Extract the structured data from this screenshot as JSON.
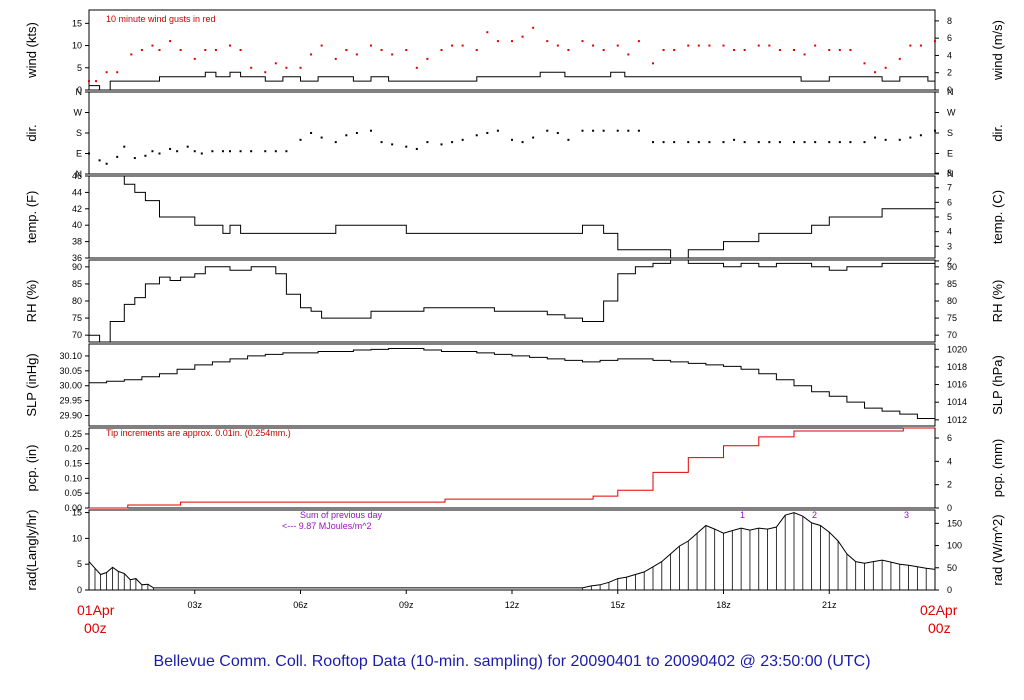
{
  "title": "Bellevue Comm. Coll. Rooftop Data (10-min. sampling) for 20090401  to  20090402 @ 23:50:00  (UTC)",
  "colors": {
    "text_blue": "#1b1bb0",
    "date_red": "#e00000",
    "note_red": "#cc0000",
    "note_purple": "#9a10c0",
    "series_black": "#000000",
    "series_red": "#e00000"
  },
  "xaxis": {
    "ticks": [
      "03z",
      "06z",
      "09z",
      "12z",
      "15z",
      "18z",
      "21z"
    ],
    "start_day": "01Apr",
    "start_hour": "00z",
    "end_day": "02Apr",
    "end_hour": "00z"
  },
  "notes": {
    "gust": "10  minute wind gusts in red",
    "tip": "Tip increments are approx. 0.01in. (0.254mm.)",
    "sum_line1": "Sum of previous day",
    "sum_line2": "<--- 9.87  MJoules/m^2",
    "markers": [
      "1",
      "2",
      "3"
    ]
  },
  "chart_data": [
    {
      "type": "line",
      "ylabel_left": "wind (kts)",
      "ylabel_right": "wind (m/s)",
      "ylim": [
        0,
        18
      ],
      "yticks_left": [
        "0",
        "5",
        "10",
        "15"
      ],
      "ylim_right": [
        0,
        9.26
      ],
      "yticks_right": [
        "0",
        "2",
        "4",
        "6",
        "8"
      ],
      "series": [
        {
          "name": "wind speed",
          "color": "#000000",
          "x": [
            0,
            0.3,
            0.6,
            1.0,
            2.0,
            3.0,
            3.3,
            3.6,
            4.0,
            4.3,
            4.6,
            5.0,
            5.5,
            6.0,
            6.5,
            7.0,
            7.5,
            8.0,
            8.5,
            9.0,
            9.5,
            10.0,
            10.5,
            11.0,
            12.0,
            12.8,
            13.5,
            14.0,
            14.4,
            14.8,
            15.2,
            16.0,
            17.0,
            18.0,
            19.0,
            20.0,
            20.2,
            21.0,
            22.0,
            22.5,
            23.0,
            23.5,
            23.8,
            24.0
          ],
          "y": [
            1,
            0,
            2,
            2,
            3,
            3,
            4,
            3,
            4,
            3,
            3,
            2,
            3,
            2,
            3,
            3,
            2,
            3,
            2,
            2,
            2,
            2,
            2,
            3,
            3,
            4,
            3,
            3,
            3,
            4,
            3,
            3,
            3,
            3,
            3,
            3,
            2,
            3,
            3,
            2,
            3,
            3,
            2,
            3
          ]
        },
        {
          "name": "10 minute wind gusts",
          "style": "dots",
          "color": "#e00000",
          "x": [
            0,
            0.2,
            0.5,
            0.8,
            1.2,
            1.5,
            1.8,
            2.0,
            2.3,
            2.6,
            3.0,
            3.3,
            3.6,
            4.0,
            4.3,
            4.6,
            5.0,
            5.3,
            5.6,
            6.0,
            6.3,
            6.6,
            7.0,
            7.3,
            7.6,
            8.0,
            8.3,
            8.6,
            9.0,
            9.3,
            9.6,
            10.0,
            10.3,
            10.6,
            11.0,
            11.3,
            11.6,
            12.0,
            12.3,
            12.6,
            13.0,
            13.3,
            13.6,
            14.0,
            14.3,
            14.6,
            15.0,
            15.3,
            15.6,
            16.0,
            16.3,
            16.6,
            17.0,
            17.3,
            17.6,
            18.0,
            18.3,
            18.6,
            19.0,
            19.3,
            19.6,
            20.0,
            20.3,
            20.6,
            21.0,
            21.3,
            21.6,
            22.0,
            22.3,
            22.6,
            23.0,
            23.3,
            23.6,
            24.0
          ],
          "y": [
            2,
            2,
            4,
            4,
            8,
            9,
            10,
            9,
            11,
            9,
            7,
            9,
            9,
            10,
            9,
            5,
            4,
            6,
            5,
            5,
            8,
            10,
            7,
            9,
            8,
            10,
            9,
            8,
            9,
            5,
            7,
            9,
            10,
            10,
            9,
            13,
            11,
            11,
            12,
            14,
            11,
            10,
            9,
            11,
            10,
            9,
            10,
            8,
            11,
            6,
            9,
            9,
            10,
            10,
            10,
            10,
            9,
            9,
            10,
            10,
            9,
            9,
            8,
            10,
            9,
            9,
            9,
            6,
            4,
            5,
            7,
            10,
            10,
            11
          ]
        }
      ]
    },
    {
      "type": "scatter",
      "ylabel_left": "dir.",
      "ylabel_right": "dir.",
      "yticks_left": [
        "N",
        "E",
        "S",
        "W",
        "N"
      ],
      "yticks_right": [
        "N",
        "E",
        "S",
        "W",
        "N"
      ],
      "ylim": [
        0,
        360
      ],
      "series": [
        {
          "name": "wind direction",
          "color": "#000000",
          "x": [
            0,
            0.3,
            0.5,
            0.8,
            1.0,
            1.3,
            1.6,
            1.8,
            2.0,
            2.3,
            2.5,
            2.8,
            3.0,
            3.2,
            3.5,
            3.8,
            4.0,
            4.3,
            4.6,
            5.0,
            5.3,
            5.6,
            6.0,
            6.3,
            6.6,
            7.0,
            7.3,
            7.6,
            8.0,
            8.3,
            8.6,
            9.0,
            9.3,
            9.6,
            10.0,
            10.3,
            10.6,
            11.0,
            11.3,
            11.6,
            12.0,
            12.3,
            12.6,
            13.0,
            13.3,
            13.6,
            14.0,
            14.3,
            14.6,
            15.0,
            15.3,
            15.6,
            16.0,
            16.3,
            16.6,
            17.0,
            17.3,
            17.6,
            18.0,
            18.3,
            18.6,
            19.0,
            19.3,
            19.6,
            20.0,
            20.3,
            20.6,
            21.0,
            21.3,
            21.6,
            22.0,
            22.3,
            22.6,
            23.0,
            23.3,
            23.6,
            24.0
          ],
          "y": [
            90,
            60,
            45,
            75,
            120,
            70,
            80,
            100,
            90,
            110,
            100,
            120,
            100,
            90,
            100,
            100,
            100,
            100,
            100,
            100,
            100,
            100,
            150,
            180,
            160,
            140,
            170,
            180,
            190,
            140,
            130,
            120,
            110,
            140,
            130,
            140,
            150,
            170,
            180,
            190,
            150,
            140,
            160,
            190,
            180,
            150,
            190,
            190,
            190,
            190,
            190,
            190,
            140,
            140,
            140,
            140,
            140,
            140,
            140,
            150,
            140,
            140,
            140,
            140,
            140,
            140,
            140,
            140,
            140,
            140,
            140,
            160,
            150,
            150,
            160,
            170,
            190
          ]
        }
      ]
    },
    {
      "type": "line",
      "ylabel_left": "temp. (F)",
      "ylabel_right": "temp. (C)",
      "ylim": [
        36,
        46
      ],
      "yticks_left": [
        "36",
        "38",
        "40",
        "42",
        "44",
        "46"
      ],
      "ylim_right": [
        2.2,
        7.8
      ],
      "yticks_right": [
        "2",
        "3",
        "4",
        "5",
        "6",
        "7",
        "8"
      ],
      "series": [
        {
          "name": "temperature",
          "color": "#000000",
          "x": [
            0,
            0.8,
            1.0,
            1.3,
            1.6,
            2.0,
            2.5,
            3.0,
            3.5,
            3.8,
            4.0,
            4.3,
            5.0,
            6.0,
            7.0,
            8.0,
            9.0,
            10.0,
            11.0,
            12.0,
            13.0,
            13.5,
            14.0,
            14.3,
            14.6,
            15.0,
            16.0,
            16.5,
            17.0,
            18.0,
            19.0,
            20.0,
            20.5,
            21.0,
            21.5,
            22.0,
            22.5,
            23.0,
            23.5,
            24.0
          ],
          "y": [
            46,
            46,
            45,
            44,
            43,
            41,
            41,
            40,
            40,
            39,
            40,
            39,
            39,
            39,
            40,
            40,
            39,
            39,
            39,
            39,
            39,
            39,
            40,
            40,
            39,
            37,
            37,
            36,
            37,
            38,
            39,
            39,
            40,
            41,
            41,
            41,
            42,
            42,
            42,
            43
          ]
        }
      ]
    },
    {
      "type": "line",
      "ylabel_left": "RH (%)",
      "ylabel_right": "RH (%)",
      "ylim": [
        68,
        92
      ],
      "yticks_left": [
        "70",
        "75",
        "80",
        "85",
        "90"
      ],
      "yticks_right": [
        "70",
        "75",
        "80",
        "85",
        "90"
      ],
      "series": [
        {
          "name": "relative humidity",
          "color": "#000000",
          "x": [
            0,
            0.3,
            0.6,
            1.0,
            1.3,
            1.6,
            2.0,
            2.3,
            2.6,
            3.0,
            3.3,
            3.6,
            4.0,
            4.3,
            4.6,
            5.0,
            5.3,
            5.6,
            6.0,
            6.3,
            6.6,
            7.0,
            7.5,
            8.0,
            8.5,
            9.0,
            9.5,
            10.0,
            10.5,
            11.0,
            11.5,
            12.0,
            12.5,
            13.0,
            13.5,
            14.0,
            14.3,
            14.6,
            15.0,
            15.5,
            16.0,
            16.5,
            17.0,
            17.5,
            18.0,
            18.5,
            19.0,
            19.5,
            20.0,
            20.5,
            21.0,
            21.5,
            22.0,
            22.5,
            23.0,
            23.5,
            24.0
          ],
          "y": [
            70,
            68,
            74,
            79,
            81,
            85,
            87,
            86,
            87,
            88,
            90,
            90,
            89,
            89,
            90,
            90,
            88,
            82,
            78,
            77,
            75,
            75,
            75,
            77,
            77,
            77,
            78,
            78,
            78,
            78,
            77,
            77,
            77,
            76,
            75,
            74,
            74,
            80,
            88,
            90,
            91,
            92,
            91,
            91,
            90,
            91,
            90,
            91,
            91,
            90,
            89,
            90,
            90,
            91,
            91,
            91,
            90
          ]
        }
      ]
    },
    {
      "type": "line",
      "ylabel_left": "SLP (inHg)",
      "ylabel_right": "SLP (hPa)",
      "ylim": [
        29.865,
        30.14
      ],
      "yticks_left": [
        "29.90",
        "29.95",
        "30.00",
        "30.05",
        "30.10"
      ],
      "ylim_right": [
        1011.3,
        1020.6
      ],
      "yticks_right": [
        "1012",
        "1014",
        "1016",
        "1018",
        "1020"
      ],
      "series": [
        {
          "name": "sea level pressure",
          "color": "#000000",
          "x": [
            0,
            0.5,
            1.0,
            1.5,
            2.0,
            2.5,
            3.0,
            3.5,
            4.0,
            4.5,
            5.0,
            5.5,
            6.0,
            6.5,
            7.0,
            7.5,
            8.0,
            8.5,
            9.0,
            9.5,
            10.0,
            10.5,
            11.0,
            11.5,
            12.0,
            12.5,
            13.0,
            13.5,
            14.0,
            14.5,
            15.0,
            15.5,
            16.0,
            16.5,
            17.0,
            17.5,
            18.0,
            18.5,
            19.0,
            19.5,
            20.0,
            20.5,
            21.0,
            21.5,
            22.0,
            22.5,
            23.0,
            23.5,
            24.0
          ],
          "y": [
            30.01,
            30.015,
            30.02,
            30.03,
            30.04,
            30.055,
            30.07,
            30.08,
            30.09,
            30.1,
            30.105,
            30.11,
            30.11,
            30.115,
            30.115,
            30.12,
            30.122,
            30.125,
            30.125,
            30.12,
            30.115,
            30.115,
            30.11,
            30.105,
            30.1,
            30.095,
            30.09,
            30.085,
            30.08,
            30.085,
            30.09,
            30.09,
            30.085,
            30.08,
            30.075,
            30.07,
            30.065,
            30.055,
            30.04,
            30.02,
            30.0,
            29.98,
            29.965,
            29.945,
            29.925,
            29.915,
            29.905,
            29.89,
            29.875
          ]
        }
      ]
    },
    {
      "type": "line",
      "ylabel_left": "pcp. (in)",
      "ylabel_right": "pcp. (mm)",
      "ylim": [
        0,
        0.27
      ],
      "yticks_left": [
        "0.00",
        "0.05",
        "0.10",
        "0.15",
        "0.20",
        "0.25"
      ],
      "ylim_right": [
        0,
        6.86
      ],
      "yticks_right": [
        "0",
        "2",
        "4",
        "6"
      ],
      "series": [
        {
          "name": "precipitation",
          "color": "#e00000",
          "x": [
            0,
            1.0,
            1.1,
            2.5,
            2.6,
            10.0,
            10.1,
            14.0,
            14.3,
            15.0,
            16.0,
            17.0,
            18.0,
            19.0,
            20.0,
            21.0,
            22.0,
            23.0,
            23.1,
            24.0
          ],
          "y": [
            0,
            0,
            0.01,
            0.01,
            0.02,
            0.02,
            0.03,
            0.03,
            0.04,
            0.06,
            0.12,
            0.17,
            0.21,
            0.24,
            0.26,
            0.26,
            0.26,
            0.26,
            0.27,
            0.27
          ]
        }
      ]
    },
    {
      "type": "bar",
      "ylabel_left": "rad(Langly/hr)",
      "ylabel_right": "rad (W/m^2)",
      "ylim": [
        0,
        15.5
      ],
      "yticks_left": [
        "0",
        "5",
        "10",
        "15"
      ],
      "ylim_right": [
        0,
        180
      ],
      "yticks_right": [
        "0",
        "50",
        "100",
        "150"
      ],
      "series": [
        {
          "name": "solar radiation",
          "color": "#000000",
          "x": [
            0,
            0.17,
            0.33,
            0.5,
            0.67,
            0.83,
            1.0,
            1.17,
            1.33,
            1.5,
            1.67,
            1.83,
            14.0,
            14.25,
            14.5,
            14.75,
            15.0,
            15.25,
            15.5,
            15.75,
            16.0,
            16.25,
            16.5,
            16.75,
            17.0,
            17.25,
            17.5,
            17.75,
            18.0,
            18.25,
            18.5,
            18.75,
            19.0,
            19.25,
            19.5,
            19.75,
            20.0,
            20.25,
            20.5,
            20.75,
            21.0,
            21.25,
            21.5,
            21.75,
            22.0,
            22.25,
            22.5,
            22.75,
            23.0,
            23.25,
            23.5,
            23.75,
            24.0
          ],
          "y": [
            5.5,
            4.2,
            3.0,
            3.4,
            4.4,
            3.6,
            3.2,
            2.0,
            2.2,
            1.0,
            1.1,
            0.4,
            0.4,
            0.8,
            1.0,
            1.5,
            2.2,
            2.5,
            3.0,
            3.5,
            4.5,
            5.5,
            7.0,
            8.5,
            9.5,
            11.0,
            12.5,
            11.8,
            11.0,
            11.5,
            12.0,
            11.6,
            12.0,
            11.8,
            12.2,
            14.5,
            15.0,
            14.3,
            13.0,
            12.5,
            11.2,
            9.5,
            7.0,
            5.5,
            5.2,
            5.5,
            5.8,
            5.4,
            5.0,
            4.8,
            4.5,
            4.2,
            4.0
          ]
        }
      ]
    }
  ]
}
